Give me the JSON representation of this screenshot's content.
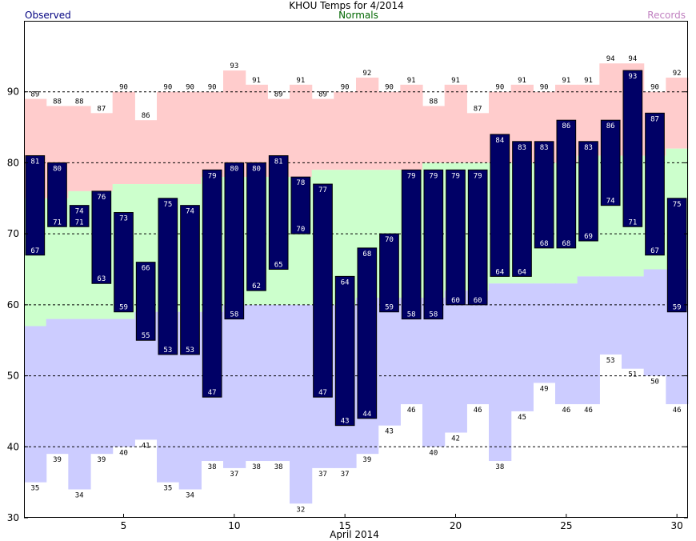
{
  "header": {
    "title": "KHOU Temps for 4/2014",
    "observed_label": "Observed",
    "normals_label": "Normals",
    "records_label": "Records"
  },
  "chart_data": {
    "type": "bar",
    "title": "KHOU Temps for 4/2014",
    "xlabel": "April 2014",
    "ylabel": "",
    "xlim": [
      1,
      30
    ],
    "ylim": [
      30,
      100
    ],
    "x_ticks": [
      "5",
      "10",
      "15",
      "20",
      "25",
      "30"
    ],
    "y_ticks": [
      "30",
      "40",
      "50",
      "60",
      "70",
      "80",
      "90"
    ],
    "dashed_gridlines": [
      40,
      50,
      60,
      70,
      80,
      90
    ],
    "legend": [
      "Observed",
      "Normals",
      "Records"
    ],
    "colors": {
      "observed": "#000066",
      "observed_text": "#000080",
      "normals_text": "#006600",
      "records_text": "#c080c0",
      "normal_fill": "#ccffcc",
      "record_high_fill": "#ffcccc",
      "record_low_fill": "#ccccff"
    },
    "days": [
      1,
      2,
      3,
      4,
      5,
      6,
      7,
      8,
      9,
      10,
      11,
      12,
      13,
      14,
      15,
      16,
      17,
      18,
      19,
      20,
      21,
      22,
      23,
      24,
      25,
      26,
      27,
      28,
      29,
      30
    ],
    "series": [
      {
        "name": "observed_high",
        "values": [
          81,
          80,
          74,
          76,
          73,
          66,
          75,
          74,
          79,
          80,
          80,
          81,
          78,
          77,
          64,
          68,
          70,
          79,
          79,
          79,
          79,
          84,
          83,
          83,
          86,
          83,
          86,
          93,
          87,
          75
        ]
      },
      {
        "name": "observed_low",
        "values": [
          67,
          71,
          71,
          63,
          59,
          55,
          53,
          53,
          47,
          58,
          62,
          65,
          70,
          47,
          43,
          44,
          59,
          58,
          58,
          60,
          60,
          64,
          64,
          68,
          68,
          69,
          74,
          71,
          67,
          59
        ]
      },
      {
        "name": "record_high",
        "values": [
          89,
          88,
          88,
          87,
          90,
          86,
          90,
          90,
          90,
          93,
          91,
          89,
          91,
          89,
          90,
          92,
          90,
          91,
          88,
          91,
          87,
          90,
          91,
          90,
          91,
          91,
          94,
          94,
          90,
          92
        ]
      },
      {
        "name": "record_low",
        "values": [
          35,
          39,
          34,
          39,
          40,
          41,
          35,
          34,
          38,
          37,
          38,
          38,
          32,
          37,
          37,
          39,
          43,
          46,
          40,
          42,
          46,
          38,
          45,
          49,
          46,
          46,
          53,
          51,
          50,
          46
        ]
      },
      {
        "name": "normal_high",
        "values": [
          75,
          75,
          76,
          76,
          77,
          77,
          77,
          77,
          78,
          78,
          78,
          78,
          78,
          79,
          79,
          79,
          79,
          79,
          80,
          80,
          80,
          80,
          80,
          80,
          80,
          81,
          81,
          81,
          81,
          82
        ]
      },
      {
        "name": "normal_low",
        "values": [
          57,
          58,
          58,
          58,
          58,
          59,
          59,
          59,
          59,
          60,
          60,
          60,
          60,
          60,
          60,
          61,
          61,
          61,
          61,
          62,
          62,
          63,
          63,
          63,
          63,
          64,
          64,
          64,
          65,
          65
        ]
      }
    ]
  }
}
